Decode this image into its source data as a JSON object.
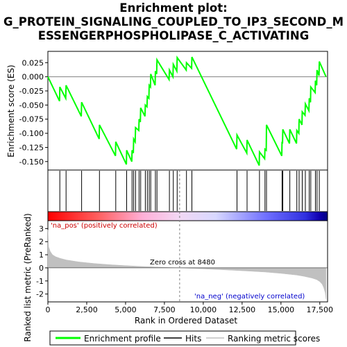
{
  "title_lines": [
    "Enrichment plot:",
    "G_PROTEIN_SIGNALING_COUPLED_TO_IP3_SECOND_M",
    "ESSENGERPHOSPHOLIPASE_C_ACTIVATING"
  ],
  "chart_data": {
    "type": "line",
    "xlabel": "Rank in Ordered Dataset",
    "xlim": [
      0,
      18000
    ],
    "x_ticks": [
      0,
      2500,
      5000,
      7500,
      10000,
      12500,
      15000,
      17500
    ],
    "x_tick_labels": [
      "0",
      "2,500",
      "5,000",
      "7,500",
      "10,000",
      "12,500",
      "15,000",
      "17,500"
    ],
    "es_panel": {
      "ylabel": "Enrichment score (ES)",
      "ylim": [
        -0.165,
        0.045
      ],
      "y_ticks": [
        0.025,
        0.0,
        -0.025,
        -0.05,
        -0.075,
        -0.1,
        -0.125,
        -0.15
      ],
      "y_tick_labels": [
        "0.025",
        "0.000",
        "-0.025",
        "-0.050",
        "-0.075",
        "-0.100",
        "-0.125",
        "-0.150"
      ],
      "series": [
        {
          "name": "Enrichment profile",
          "color": "#00ff00",
          "x": [
            0,
            750,
            770,
            1150,
            1170,
            2150,
            2170,
            3300,
            3320,
            4350,
            4370,
            5050,
            5070,
            5400,
            5420,
            5500,
            5520,
            5620,
            5640,
            5850,
            5870,
            5950,
            5970,
            6250,
            6270,
            6380,
            6400,
            6500,
            6520,
            6600,
            6620,
            6900,
            6920,
            7000,
            7020,
            7800,
            7820,
            8050,
            8070,
            8300,
            8320,
            8900,
            8920,
            9250,
            9270,
            12150,
            12170,
            12800,
            12820,
            13600,
            13620,
            13950,
            13970,
            14050,
            14070,
            15050,
            15070,
            15100,
            15120,
            15550,
            15570,
            16000,
            16020,
            16150,
            16170,
            16350,
            16370,
            16550,
            16570,
            16800,
            16820,
            16900,
            16920,
            17200,
            17220,
            17300,
            17320,
            17450,
            17470,
            17900
          ],
          "y": [
            0.0,
            -0.043,
            -0.018,
            -0.038,
            -0.015,
            -0.07,
            -0.045,
            -0.11,
            -0.085,
            -0.14,
            -0.115,
            -0.155,
            -0.13,
            -0.15,
            -0.13,
            -0.135,
            -0.11,
            -0.115,
            -0.09,
            -0.095,
            -0.075,
            -0.08,
            -0.055,
            -0.07,
            -0.05,
            -0.053,
            -0.035,
            -0.038,
            -0.015,
            -0.018,
            0.005,
            -0.015,
            0.01,
            0.005,
            0.03,
            -0.005,
            0.012,
            0.0,
            0.022,
            0.01,
            0.034,
            0.012,
            0.025,
            0.015,
            0.035,
            -0.128,
            -0.103,
            -0.135,
            -0.112,
            -0.157,
            -0.133,
            -0.145,
            -0.128,
            -0.13,
            -0.085,
            -0.14,
            -0.115,
            -0.118,
            -0.093,
            -0.118,
            -0.093,
            -0.118,
            -0.095,
            -0.1,
            -0.075,
            -0.085,
            -0.062,
            -0.068,
            -0.048,
            -0.06,
            -0.038,
            -0.045,
            -0.018,
            -0.028,
            -0.007,
            -0.015,
            0.012,
            0.002,
            0.027,
            0.0
          ]
        }
      ]
    },
    "hits": {
      "name": "Hits",
      "color": "#000000",
      "x": [
        770,
        1170,
        2170,
        3320,
        4370,
        5070,
        5420,
        5520,
        5640,
        5870,
        5970,
        6270,
        6400,
        6520,
        6620,
        6920,
        7020,
        7820,
        8070,
        8320,
        8920,
        9270,
        12170,
        12820,
        13620,
        13970,
        14070,
        15070,
        15120,
        15570,
        16020,
        16170,
        16370,
        16570,
        16820,
        16920,
        17220,
        17320,
        17470
      ]
    },
    "ranking_panel": {
      "name": "Ranking metric scores",
      "ylabel": "Ranked list metric (PreRanked)",
      "ylim": [
        -2.6,
        3.6
      ],
      "y_ticks": [
        3,
        2,
        1,
        0,
        -1,
        -2
      ],
      "y_tick_labels": [
        "3",
        "2",
        "1",
        "0",
        "-1",
        "-2"
      ],
      "color": "#c0c0c0",
      "x": [
        0,
        50,
        150,
        300,
        500,
        800,
        1200,
        2000,
        3000,
        4000,
        5000,
        6000,
        7000,
        8000,
        8480,
        9000,
        10000,
        11000,
        12000,
        13000,
        14000,
        15000,
        16000,
        16500,
        17000,
        17300,
        17500,
        17650,
        17750,
        17850,
        17900
      ],
      "y": [
        2.9,
        1.6,
        1.25,
        1.0,
        0.85,
        0.72,
        0.6,
        0.45,
        0.33,
        0.24,
        0.17,
        0.11,
        0.06,
        0.02,
        0.0,
        -0.03,
        -0.08,
        -0.13,
        -0.19,
        -0.25,
        -0.32,
        -0.42,
        -0.55,
        -0.65,
        -0.78,
        -0.9,
        -1.05,
        -1.25,
        -1.5,
        -1.9,
        -2.4
      ],
      "zero_cross_rank": 8480,
      "annotations": {
        "zero_cross": "Zero cross at 8480",
        "pos": "'na_pos' (positively correlated)",
        "neg": "'na_neg' (negatively correlated)"
      }
    },
    "legend": {
      "position": "bottom",
      "entries": [
        {
          "label": "Enrichment profile",
          "color": "#00ff00"
        },
        {
          "label": "Hits",
          "color": "#000000"
        },
        {
          "label": "Ranking metric scores",
          "color": "#c0c0c0"
        }
      ]
    },
    "colors": {
      "pos_text": "#cc0000",
      "neg_text": "#0000cc",
      "zero_line": "#808080",
      "grid": "#000000"
    }
  }
}
